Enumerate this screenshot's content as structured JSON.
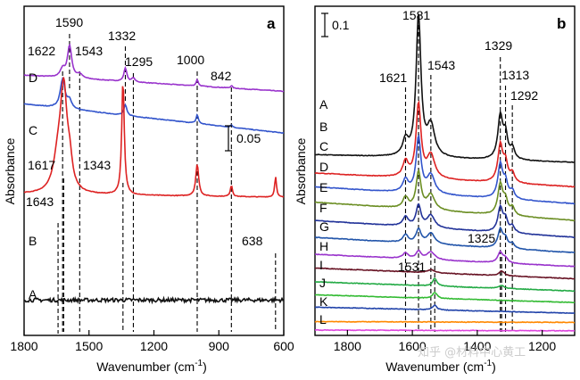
{
  "chart_data": [
    {
      "panel": "a",
      "type": "line",
      "xlabel": "Wavenumber (cm",
      "xlabel_sup": "-1",
      "xlabel_close": ")",
      "ylabel": "Absorbance",
      "x_range": [
        1800,
        600
      ],
      "x_ticks": [
        "1800",
        "1500",
        "1200",
        "900",
        "600"
      ],
      "scale_bar": {
        "value": 0.05,
        "label": "0.05"
      },
      "peak_lines": [
        {
          "wavenumber": 1643,
          "label": "1643"
        },
        {
          "wavenumber": 1622,
          "label": "1622"
        },
        {
          "wavenumber": 1617,
          "label": "1617"
        },
        {
          "wavenumber": 1590,
          "label": "1590"
        },
        {
          "wavenumber": 1543,
          "label": "1543"
        },
        {
          "wavenumber": 1343,
          "label": "1343"
        },
        {
          "wavenumber": 1332,
          "label": "1332"
        },
        {
          "wavenumber": 1295,
          "label": "1295"
        },
        {
          "wavenumber": 1000,
          "label": "1000"
        },
        {
          "wavenumber": 842,
          "label": "842"
        },
        {
          "wavenumber": 638,
          "label": "638"
        }
      ],
      "series": [
        {
          "name": "D",
          "color": "#9933cc",
          "baseline": 0.82,
          "slope": 0.1,
          "peaks": [
            [
              1622,
              0.05,
              12
            ],
            [
              1590,
              0.2,
              12
            ],
            [
              1543,
              0.025,
              14
            ],
            [
              1332,
              0.085,
              8
            ],
            [
              1295,
              0.025,
              8
            ],
            [
              1000,
              0.04,
              6
            ],
            [
              842,
              0.015,
              6
            ]
          ]
        },
        {
          "name": "C",
          "color": "#3355cc",
          "baseline": 0.56,
          "slope": 0.18,
          "peaks": [
            [
              1622,
              0.18,
              13
            ],
            [
              1590,
              0.05,
              12
            ],
            [
              1332,
              0.065,
              8
            ],
            [
              1000,
              0.055,
              6
            ],
            [
              842,
              0.015,
              6
            ]
          ]
        },
        {
          "name": "B",
          "color": "#dd2222",
          "baseline": 0.16,
          "slope": 0.02,
          "peaks": [
            [
              1643,
              0.2,
              25
            ],
            [
              1617,
              0.6,
              18
            ],
            [
              1590,
              0.15,
              15
            ],
            [
              1343,
              0.72,
              7
            ],
            [
              1000,
              0.2,
              8
            ],
            [
              842,
              0.07,
              6
            ],
            [
              638,
              0.13,
              5
            ]
          ]
        },
        {
          "name": "A",
          "color": "#111111",
          "baseline": -0.48,
          "slope": 0.0,
          "noise": 0.012,
          "peaks": []
        }
      ],
      "y_range": [
        -0.7,
        1.35
      ]
    },
    {
      "panel": "b",
      "type": "line",
      "xlabel": "Wavenumber (cm",
      "xlabel_sup": "-1",
      "xlabel_close": ")",
      "ylabel": "Absorbance",
      "x_range": [
        1900,
        1100
      ],
      "x_ticks": [
        "1800",
        "1600",
        "1400",
        "1200"
      ],
      "scale_bar": {
        "value": 0.1,
        "label": "0.1"
      },
      "peak_lines": [
        {
          "wavenumber": 1621,
          "label": "1621"
        },
        {
          "wavenumber": 1581,
          "label": "1581"
        },
        {
          "wavenumber": 1543,
          "label": "1543"
        },
        {
          "wavenumber": 1531,
          "label": "1531"
        },
        {
          "wavenumber": 1329,
          "label": "1329"
        },
        {
          "wavenumber": 1325,
          "label": "1325"
        },
        {
          "wavenumber": 1313,
          "label": "1313"
        },
        {
          "wavenumber": 1292,
          "label": "1292"
        }
      ],
      "series": [
        {
          "name": "A",
          "color": "#111111",
          "baseline": 1.13,
          "slope": 0.05,
          "peaks": [
            [
              1621,
              0.1,
              10
            ],
            [
              1581,
              0.92,
              9
            ],
            [
              1543,
              0.2,
              14
            ],
            [
              1329,
              0.28,
              9
            ],
            [
              1313,
              0.15,
              8
            ],
            [
              1292,
              0.07,
              8
            ]
          ]
        },
        {
          "name": "B",
          "color": "#dd2222",
          "baseline": 0.97,
          "slope": 0.09,
          "peaks": [
            [
              1621,
              0.1,
              10
            ],
            [
              1581,
              0.48,
              9
            ],
            [
              1543,
              0.15,
              14
            ],
            [
              1329,
              0.24,
              9
            ],
            [
              1313,
              0.12,
              8
            ],
            [
              1292,
              0.06,
              8
            ]
          ]
        },
        {
          "name": "C",
          "color": "#3355cc",
          "baseline": 0.86,
          "slope": 0.11,
          "peaks": [
            [
              1621,
              0.08,
              10
            ],
            [
              1581,
              0.36,
              9
            ],
            [
              1543,
              0.12,
              14
            ],
            [
              1329,
              0.22,
              9
            ],
            [
              1313,
              0.1,
              8
            ],
            [
              1292,
              0.05,
              8
            ]
          ]
        },
        {
          "name": "D",
          "color": "#6b8e23",
          "baseline": 0.75,
          "slope": 0.12,
          "peaks": [
            [
              1621,
              0.07,
              10
            ],
            [
              1581,
              0.24,
              9
            ],
            [
              1543,
              0.1,
              14
            ],
            [
              1329,
              0.2,
              9
            ],
            [
              1313,
              0.09,
              8
            ],
            [
              1292,
              0.05,
              8
            ]
          ]
        },
        {
          "name": "E",
          "color": "#223399",
          "baseline": 0.64,
          "slope": 0.11,
          "peaks": [
            [
              1621,
              0.06,
              10
            ],
            [
              1581,
              0.14,
              9
            ],
            [
              1543,
              0.08,
              14
            ],
            [
              1329,
              0.16,
              9
            ],
            [
              1313,
              0.08,
              8
            ],
            [
              1292,
              0.04,
              8
            ]
          ]
        },
        {
          "name": "F",
          "color": "#2255aa",
          "baseline": 0.54,
          "slope": 0.1,
          "peaks": [
            [
              1621,
              0.05,
              10
            ],
            [
              1581,
              0.09,
              9
            ],
            [
              1543,
              0.07,
              14
            ],
            [
              1329,
              0.12,
              9
            ],
            [
              1313,
              0.06,
              8
            ],
            [
              1292,
              0.03,
              8
            ]
          ]
        },
        {
          "name": "G",
          "color": "#9933cc",
          "baseline": 0.45,
          "slope": 0.08,
          "peaks": [
            [
              1621,
              0.035,
              10
            ],
            [
              1581,
              0.05,
              9
            ],
            [
              1543,
              0.05,
              14
            ],
            [
              1329,
              0.07,
              9
            ],
            [
              1313,
              0.03,
              8
            ]
          ]
        },
        {
          "name": "H",
          "color": "#661122",
          "baseline": 0.37,
          "slope": 0.07,
          "peaks": [
            [
              1543,
              0.02,
              14
            ],
            [
              1325,
              0.03,
              10
            ]
          ]
        },
        {
          "name": "I",
          "color": "#22aa44",
          "baseline": 0.29,
          "slope": 0.06,
          "peaks": [
            [
              1531,
              0.05,
              8
            ],
            [
              1325,
              0.02,
              10
            ]
          ]
        },
        {
          "name": "J",
          "color": "#33bb33",
          "baseline": 0.215,
          "slope": 0.05,
          "peaks": [
            [
              1531,
              0.04,
              8
            ]
          ]
        },
        {
          "name": "K",
          "color": "#2244aa",
          "baseline": 0.145,
          "slope": 0.04,
          "peaks": [
            [
              1531,
              0.03,
              8
            ]
          ]
        },
        {
          "name": "L",
          "color": "#ff8800",
          "baseline": 0.085,
          "slope": 0.005,
          "peaks": []
        },
        {
          "name": "",
          "color": "#dd44dd",
          "baseline": 0.03,
          "slope": 0.005,
          "peaks": []
        }
      ],
      "y_range": [
        0.0,
        2.15
      ]
    }
  ],
  "watermark": "知乎 @材料中心黄工"
}
